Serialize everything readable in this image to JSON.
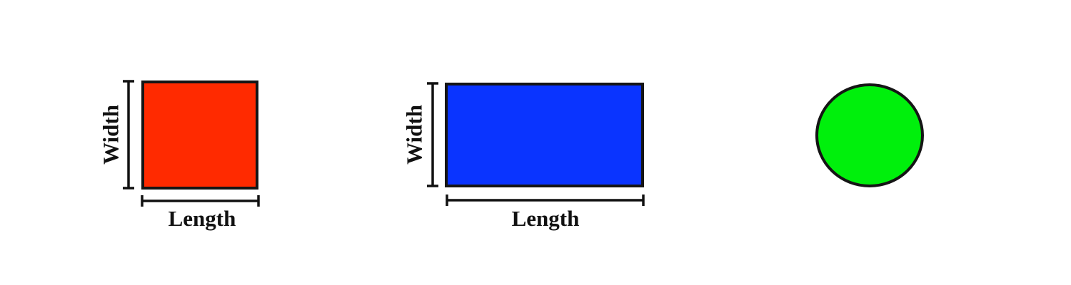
{
  "shapes": [
    {
      "id": "square",
      "kind": "square",
      "fill": "#ff2a00",
      "width_label": "Width",
      "length_label": "Length"
    },
    {
      "id": "rectangle",
      "kind": "rectangle",
      "fill": "#0a34ff",
      "width_label": "Width",
      "length_label": "Length"
    },
    {
      "id": "circle",
      "kind": "circle",
      "fill": "#00f00c"
    }
  ],
  "colors": {
    "outline": "#151515",
    "dimension_line": "#111111",
    "background": "#ffffff"
  }
}
